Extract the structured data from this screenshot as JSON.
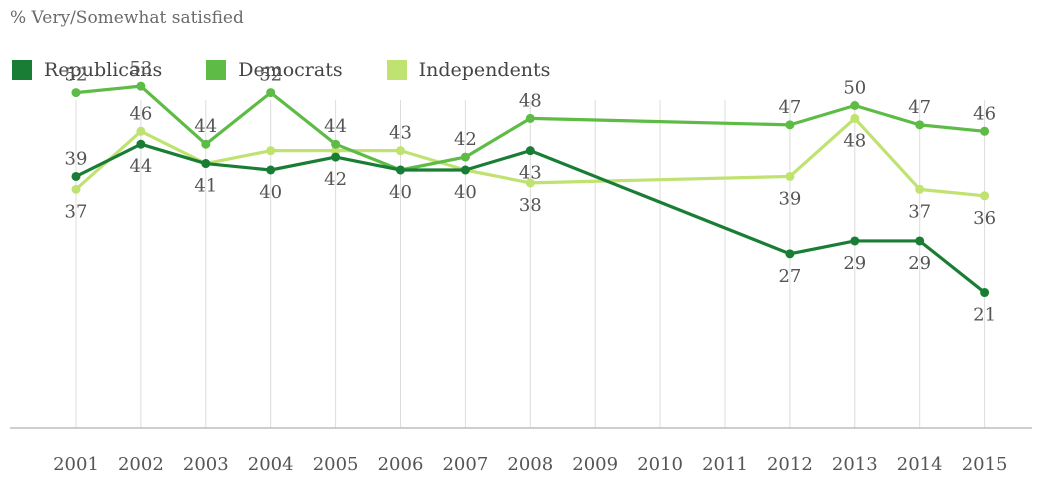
{
  "chart_data": {
    "type": "line",
    "subtitle": "% Very/Somewhat satisfied",
    "x": [
      "2001",
      "2002",
      "2003",
      "2004",
      "2005",
      "2006",
      "2007",
      "2008",
      "2009",
      "2010",
      "2011",
      "2012",
      "2013",
      "2014",
      "2015"
    ],
    "series": [
      {
        "name": "Republicans",
        "color": "#1a7d35",
        "values": [
          39,
          44,
          41,
          40,
          42,
          40,
          40,
          43,
          null,
          null,
          null,
          27,
          29,
          29,
          21
        ],
        "labels": [
          "39",
          "44",
          "41",
          "40",
          "42",
          "40",
          "40",
          "43",
          "",
          "",
          "",
          "27",
          "29",
          "29",
          "21"
        ]
      },
      {
        "name": "Democrats",
        "color": "#5dbb46",
        "values": [
          52,
          53,
          44,
          52,
          44,
          40,
          42,
          48,
          null,
          null,
          null,
          47,
          50,
          47,
          46
        ],
        "labels": [
          "52",
          "53",
          "44",
          "52",
          "44",
          "",
          "42",
          "48",
          "",
          "",
          "",
          "47",
          "50",
          "47",
          "46"
        ]
      },
      {
        "name": "Independents",
        "color": "#bfe271",
        "values": [
          37,
          46,
          41,
          43,
          43,
          43,
          40,
          38,
          null,
          null,
          null,
          39,
          48,
          37,
          36
        ],
        "labels": [
          "37",
          "46",
          "",
          "",
          "",
          "43",
          "",
          "38",
          "",
          "",
          "",
          "39",
          "48",
          "37",
          "36"
        ]
      }
    ],
    "ylim": [
      0,
      70
    ],
    "grid": "vertical",
    "legend": "top-left"
  }
}
